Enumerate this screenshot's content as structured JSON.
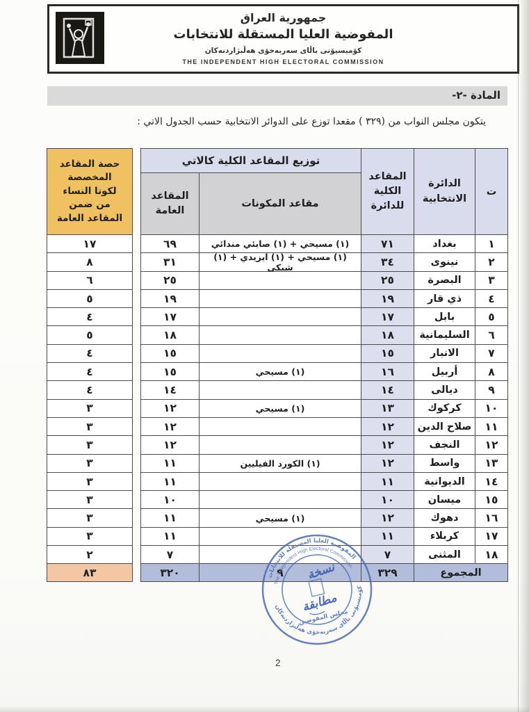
{
  "letterhead": {
    "arabic_line1": "جمهورية العراق",
    "arabic_line2": "المفوضية العليا المستقلة للانتخابات",
    "kurdish_line": "كۆميسيۆنى باڵاى سەربەخۆى هەڵبژاردنەكان",
    "english_line": "THE INDEPENDENT HIGH ELECTORAL COMMISSION",
    "logo": "ihec-voter-emblem"
  },
  "article": {
    "label": "المادة  -٢-",
    "intro": "يتكون مجلس النواب من (٣٢٩ ) مقعدا توزع على الدوائر الانتخابية حسب الجدول الاتي :"
  },
  "table": {
    "headers": {
      "serial": "ت",
      "district": "الدائرة\nالانتخابية",
      "total_seats": "المقاعد\nالكلية\nللدائرة",
      "distribution_span": "توزيع المقاعد الكلية كالاتي",
      "component_seats": "مقاعد المكونات",
      "general_seats": "المقاعد\nالعامة",
      "women_quota": "حصة المقاعد\nالمخصصة\nلكوتا النساء\nمن ضمن\nالمقاعد العامة"
    },
    "rows": [
      {
        "serial": "١",
        "district": "بغداد",
        "total": "٧١",
        "components": "(١) مسيحي +  (١) صابئي مندائي",
        "general": "٦٩",
        "quota": "١٧"
      },
      {
        "serial": "٢",
        "district": "نينوى",
        "total": "٣٤",
        "components": "(١) مسيحي + (١) ايزيدي + (١) شبكي",
        "general": "٣١",
        "quota": "٨"
      },
      {
        "serial": "٣",
        "district": "البصرة",
        "total": "٢٥",
        "components": "",
        "general": "٢٥",
        "quota": "٦"
      },
      {
        "serial": "٤",
        "district": "ذي قار",
        "total": "١٩",
        "components": "",
        "general": "١٩",
        "quota": "٥"
      },
      {
        "serial": "٥",
        "district": "بابل",
        "total": "١٧",
        "components": "",
        "general": "١٧",
        "quota": "٤"
      },
      {
        "serial": "٦",
        "district": "السليمانية",
        "total": "١٨",
        "components": "",
        "general": "١٨",
        "quota": "٥"
      },
      {
        "serial": "٧",
        "district": "الانبار",
        "total": "١٥",
        "components": "",
        "general": "١٥",
        "quota": "٤"
      },
      {
        "serial": "٨",
        "district": "أربيل",
        "total": "١٦",
        "components": "(١) مسيحي",
        "general": "١٥",
        "quota": "٤"
      },
      {
        "serial": "٩",
        "district": "ديالى",
        "total": "١٤",
        "components": "",
        "general": "١٤",
        "quota": "٤"
      },
      {
        "serial": "١٠",
        "district": "كركوك",
        "total": "١٣",
        "components": "(١) مسيحي",
        "general": "١٢",
        "quota": "٣"
      },
      {
        "serial": "١١",
        "district": "صلاح الدين",
        "total": "١٢",
        "components": "",
        "general": "١٢",
        "quota": "٣"
      },
      {
        "serial": "١٢",
        "district": "النجف",
        "total": "١٢",
        "components": "",
        "general": "١٢",
        "quota": "٣"
      },
      {
        "serial": "١٣",
        "district": "واسط",
        "total": "١٢",
        "components": "(١) الكورد الفيليين",
        "general": "١١",
        "quota": "٣"
      },
      {
        "serial": "١٤",
        "district": "الديوانية",
        "total": "١١",
        "components": "",
        "general": "١١",
        "quota": "٣"
      },
      {
        "serial": "١٥",
        "district": "ميسان",
        "total": "١٠",
        "components": "",
        "general": "١٠",
        "quota": "٣"
      },
      {
        "serial": "١٦",
        "district": "دهوك",
        "total": "١٢",
        "components": "(١) مسيحي",
        "general": "١١",
        "quota": "٣"
      },
      {
        "serial": "١٧",
        "district": "كربلاء",
        "total": "١١",
        "components": "",
        "general": "١١",
        "quota": "٣"
      },
      {
        "serial": "١٨",
        "district": "المثنى",
        "total": "٧",
        "components": "",
        "general": "٧",
        "quota": "٢"
      }
    ],
    "total_row": {
      "label": "المجموع",
      "total": "٣٢٩",
      "components": "٩",
      "general": "٣٢٠",
      "quota": "٨٣"
    }
  },
  "stamp": {
    "arabic_arc": "المفوضية العليا المستقلة للانتخابات",
    "english_arc": "The Independent High Electoral Commission",
    "kurdish_arc": "كۆميسيۆنى باڵاى سەربەخۆى هەڵبژاردنەكان",
    "hand_line1": "نسخة",
    "hand_line2": "مطابقة",
    "center_caption": "مجلس المفوضين"
  },
  "page_number": "2",
  "colors": {
    "table_header_fill": "#d9dcec",
    "subheader_fill": "#d2d1d4",
    "total_column_fill": "#dcdfee",
    "total_row_fill": "#b2bcdb",
    "women_quota_header_fill": "#f0c161",
    "women_quota_total_fill": "#f3c7a3",
    "stamp_blue": "#4a6cb3",
    "border": "#4b4b4b"
  }
}
